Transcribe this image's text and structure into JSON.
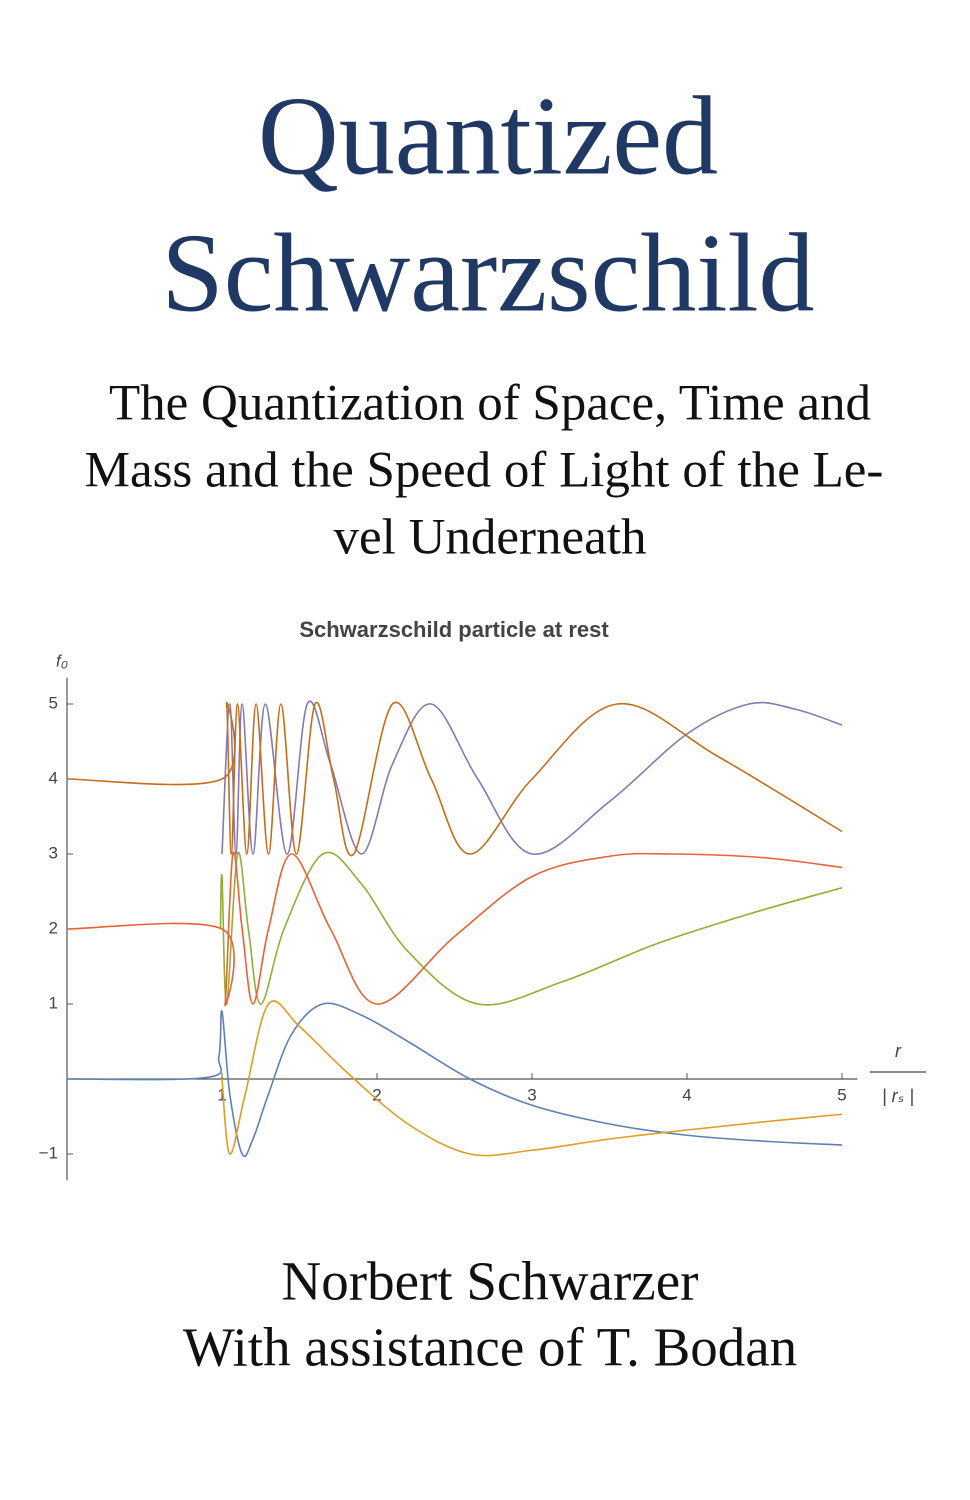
{
  "cover": {
    "title_lines": [
      "Quantized",
      "Schwarzschild"
    ],
    "subtitle_lines": [
      "The Quantization of Space, Time and",
      "Mass and the Speed of Light of the Le-",
      "vel Underneath"
    ],
    "authors": [
      "Norbert Schwarzer",
      "With assistance of T. Bodan"
    ]
  },
  "chart_data": {
    "type": "line",
    "title": "Schwarzschild particle at rest",
    "y_label": "f₀",
    "x_label": {
      "numerator": "r",
      "denominator": "| rₛ |"
    },
    "xlim": [
      0,
      5.1
    ],
    "ylim": [
      -1.35,
      5.35
    ],
    "xticks": [
      1,
      2,
      3,
      4,
      5
    ],
    "yticks": [
      {
        "value": -1,
        "label": "−1"
      },
      1,
      2,
      3,
      4,
      5
    ],
    "grid": false,
    "series": [
      {
        "color": "#5e81b5",
        "x": [
          0,
          0.9,
          0.98,
          1.0,
          1.05,
          1.13,
          1.2,
          1.3,
          1.45,
          1.65,
          1.9,
          2.2,
          2.6,
          3,
          3.5,
          4,
          4.5,
          5
        ],
        "values": [
          0,
          0.02,
          0.3,
          0.9,
          -0.2,
          -1.0,
          -0.8,
          -0.2,
          0.6,
          1.0,
          0.85,
          0.5,
          0.0,
          -0.35,
          -0.6,
          -0.75,
          -0.83,
          -0.88
        ]
      },
      {
        "color": "#e19c24",
        "x": [
          1.0,
          1.05,
          1.15,
          1.3,
          1.5,
          1.8,
          2.2,
          2.6,
          3,
          3.5,
          4,
          4.5,
          5
        ],
        "values": [
          0,
          -1,
          -0.2,
          1,
          0.7,
          0.1,
          -0.6,
          -1,
          -0.95,
          -0.8,
          -0.68,
          -0.57,
          -0.47
        ]
      },
      {
        "color": "#8fb032",
        "x": [
          0.99,
          1.0,
          1.03,
          1.1,
          1.17,
          1.25,
          1.4,
          1.65,
          1.9,
          2.2,
          2.65,
          3.2,
          3.8,
          4.4,
          5
        ],
        "values": [
          2,
          2.7,
          1,
          3,
          2,
          1,
          2,
          3,
          2.6,
          1.7,
          1,
          1.3,
          1.8,
          2.2,
          2.55
        ]
      },
      {
        "color": "#eb6235",
        "x": [
          0,
          1,
          1.02,
          1.07,
          1.13,
          1.2,
          1.3,
          1.45,
          1.7,
          2,
          2.5,
          3,
          3.5,
          3.9,
          4.5,
          5
        ],
        "values": [
          2,
          2,
          1,
          3,
          2,
          1,
          2,
          3,
          2,
          1,
          1.9,
          2.7,
          2.97,
          3,
          2.95,
          2.82
        ]
      },
      {
        "color": "#8778b3",
        "x": [
          1,
          1.05,
          1.09,
          1.13,
          1.2,
          1.28,
          1.42,
          1.55,
          1.7,
          1.9,
          2.1,
          2.35,
          2.65,
          3.0,
          3.5,
          4.0,
          4.4,
          4.7,
          5
        ],
        "values": [
          3,
          5,
          3,
          5,
          3,
          5,
          3,
          5,
          4.2,
          3,
          4.2,
          5,
          4,
          3,
          3.7,
          4.6,
          5,
          4.93,
          4.72
        ]
      },
      {
        "color": "#c56e1a",
        "x": [
          0,
          1,
          1.03,
          1.06,
          1.1,
          1.16,
          1.22,
          1.3,
          1.38,
          1.48,
          1.6,
          1.72,
          1.85,
          2.1,
          2.35,
          2.6,
          3.0,
          3.55,
          4.2,
          5
        ],
        "values": [
          4,
          4,
          5,
          3,
          5,
          3,
          5,
          3,
          5,
          3,
          5,
          4,
          3,
          5,
          4,
          3,
          4,
          5,
          4.3,
          3.3
        ]
      }
    ]
  }
}
